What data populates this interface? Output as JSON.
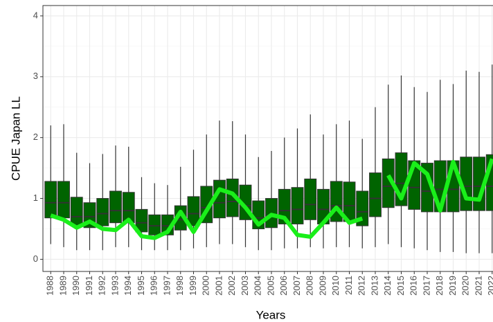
{
  "chart_data": {
    "type": "box-line",
    "x_label": "Years",
    "y_label": "CPUE Japan LL",
    "categories": [
      "1988",
      "1989",
      "1990",
      "1991",
      "1992",
      "1993",
      "1994",
      "1995",
      "1996",
      "1997",
      "1998",
      "1999",
      "2000",
      "2001",
      "2002",
      "2003",
      "2004",
      "2005",
      "2006",
      "2007",
      "2008",
      "2009",
      "2010",
      "2011",
      "2012",
      "2013",
      "2014",
      "2015",
      "2016",
      "2017",
      "2018",
      "2019",
      "2020",
      "2021",
      "2022"
    ],
    "boxes": {
      "color": "#006400",
      "whisker_low": [
        0.25,
        0.2,
        0.15,
        0.15,
        0.15,
        0.2,
        0.2,
        0.15,
        0.15,
        0.15,
        0.15,
        0.18,
        0.2,
        0.25,
        0.25,
        0.2,
        0.15,
        0.15,
        0.18,
        0.18,
        0.2,
        0.18,
        0.2,
        0.2,
        0.18,
        0.2,
        0.25,
        0.2,
        0.18,
        0.15,
        0.12,
        0.12,
        0.1,
        0.1,
        0.1
      ],
      "q1": [
        0.68,
        0.68,
        0.55,
        0.52,
        0.55,
        0.6,
        0.6,
        0.45,
        0.4,
        0.4,
        0.48,
        0.55,
        0.6,
        0.68,
        0.7,
        0.65,
        0.5,
        0.52,
        0.58,
        0.58,
        0.65,
        0.58,
        0.62,
        0.62,
        0.55,
        0.7,
        0.85,
        0.88,
        0.82,
        0.78,
        0.78,
        0.78,
        0.8,
        0.8,
        0.8
      ],
      "median": [
        0.93,
        0.93,
        0.7,
        0.7,
        0.75,
        0.8,
        0.8,
        0.6,
        0.55,
        0.55,
        0.65,
        0.75,
        0.85,
        0.93,
        0.95,
        0.88,
        0.68,
        0.72,
        0.8,
        0.82,
        0.9,
        0.82,
        0.88,
        0.88,
        0.78,
        1.0,
        1.2,
        1.25,
        1.18,
        1.12,
        1.15,
        1.15,
        1.2,
        1.2,
        1.2
      ],
      "q3": [
        1.28,
        1.28,
        1.02,
        0.93,
        1.0,
        1.12,
        1.1,
        0.82,
        0.73,
        0.73,
        0.88,
        1.03,
        1.2,
        1.3,
        1.32,
        1.22,
        0.96,
        1.0,
        1.15,
        1.18,
        1.32,
        1.15,
        1.28,
        1.27,
        1.12,
        1.42,
        1.65,
        1.75,
        1.62,
        1.58,
        1.62,
        1.62,
        1.68,
        1.68,
        1.72
      ],
      "whisker_high": [
        2.2,
        2.22,
        1.75,
        1.58,
        1.73,
        1.87,
        1.85,
        1.35,
        1.25,
        1.22,
        1.52,
        1.8,
        2.05,
        2.28,
        2.27,
        2.05,
        1.68,
        1.78,
        2.0,
        2.15,
        2.38,
        2.05,
        2.22,
        2.28,
        1.98,
        2.5,
        2.87,
        3.02,
        2.83,
        2.75,
        2.95,
        2.88,
        3.1,
        3.08,
        3.2
      ]
    },
    "line": {
      "color": "#1aef1a",
      "values": [
        0.72,
        0.65,
        0.52,
        0.62,
        0.5,
        0.48,
        0.65,
        0.38,
        0.35,
        0.45,
        0.78,
        0.45,
        0.8,
        1.15,
        1.08,
        0.85,
        0.57,
        0.73,
        0.68,
        0.4,
        0.37,
        0.6,
        0.85,
        0.6,
        0.67,
        null,
        1.38,
        1.0,
        1.58,
        1.4,
        0.8,
        1.6,
        1.0,
        0.98,
        1.65
      ]
    },
    "ylim": [
      -0.2,
      4.17
    ],
    "yticks": [
      0,
      1,
      2,
      3,
      4
    ],
    "grid": true
  }
}
